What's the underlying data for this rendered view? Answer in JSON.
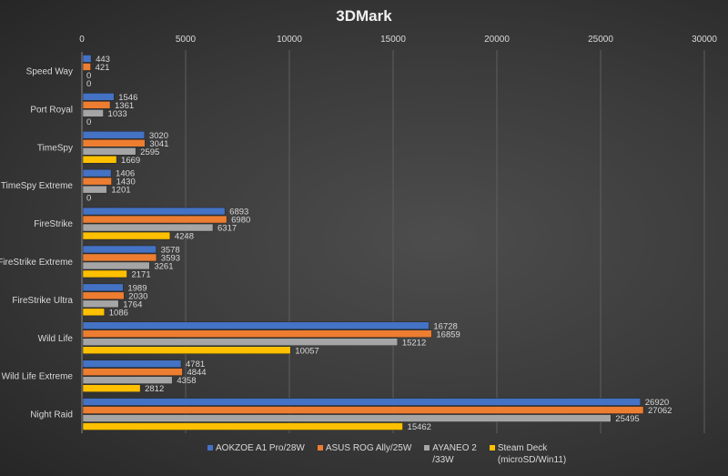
{
  "chart_data": {
    "type": "bar",
    "orientation": "horizontal",
    "title": "3DMark",
    "categories": [
      "Speed Way",
      "Port Royal",
      "TimeSpy",
      "TimeSpy Extreme",
      "FireStrike",
      "FireStrike Extreme",
      "FireStrike Ultra",
      "Wild Life",
      "Wild Life Extreme",
      "Night Raid"
    ],
    "series": [
      {
        "name": "AOKZOE A1 Pro/28W",
        "color": "#4472c4",
        "values": [
          443,
          1546,
          3020,
          1406,
          6893,
          3578,
          1989,
          16728,
          4781,
          26920
        ]
      },
      {
        "name": "ASUS ROG Ally/25W",
        "color": "#ed7d31",
        "values": [
          421,
          1361,
          3041,
          1430,
          6980,
          3593,
          2030,
          16859,
          4844,
          27062
        ]
      },
      {
        "name": "AYANEO 2\n/33W",
        "color": "#a5a5a5",
        "values": [
          0,
          1033,
          2595,
          1201,
          6317,
          3261,
          1764,
          15212,
          4358,
          25495
        ]
      },
      {
        "name": "Steam Deck\n(microSD/Win11)",
        "color": "#ffc000",
        "values": [
          0,
          0,
          1669,
          0,
          4248,
          2171,
          1086,
          10057,
          2812,
          15462
        ]
      }
    ],
    "xlim": [
      0,
      30000
    ],
    "xticks": [
      "0",
      "5000",
      "10000",
      "15000",
      "20000",
      "25000",
      "30000"
    ],
    "grid": true,
    "legend": "bottom",
    "data_labels": true
  }
}
